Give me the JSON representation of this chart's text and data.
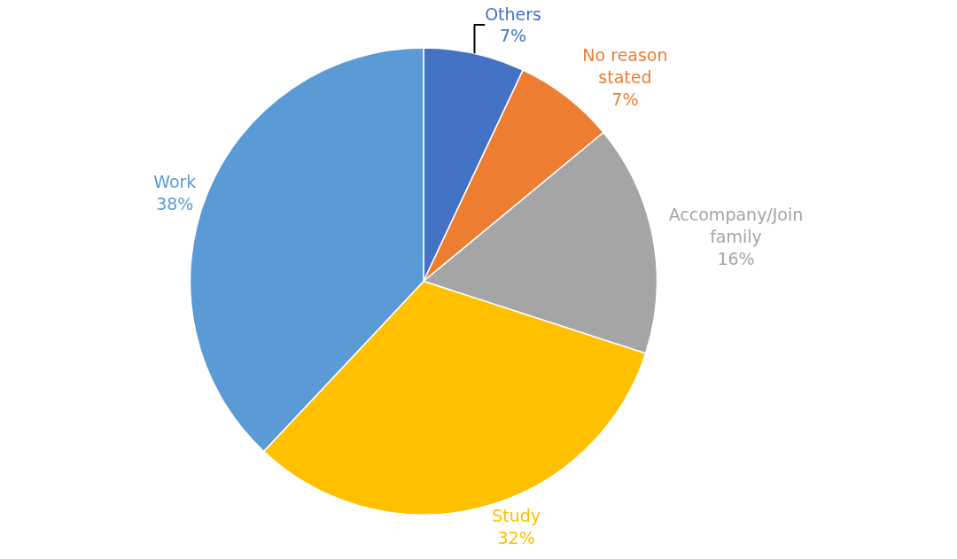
{
  "chart_data": {
    "type": "pie",
    "categories": [
      "Others",
      "No reason stated",
      "Accompany/Join family",
      "Study",
      "Work"
    ],
    "values": [
      7,
      7,
      16,
      32,
      38
    ],
    "value_labels": [
      "7%",
      "7%",
      "16%",
      "32%",
      "38%"
    ],
    "colors": [
      "#4472c4",
      "#ed7d31",
      "#a5a5a5",
      "#ffc000",
      "#5b9bd5"
    ],
    "legend": false
  }
}
